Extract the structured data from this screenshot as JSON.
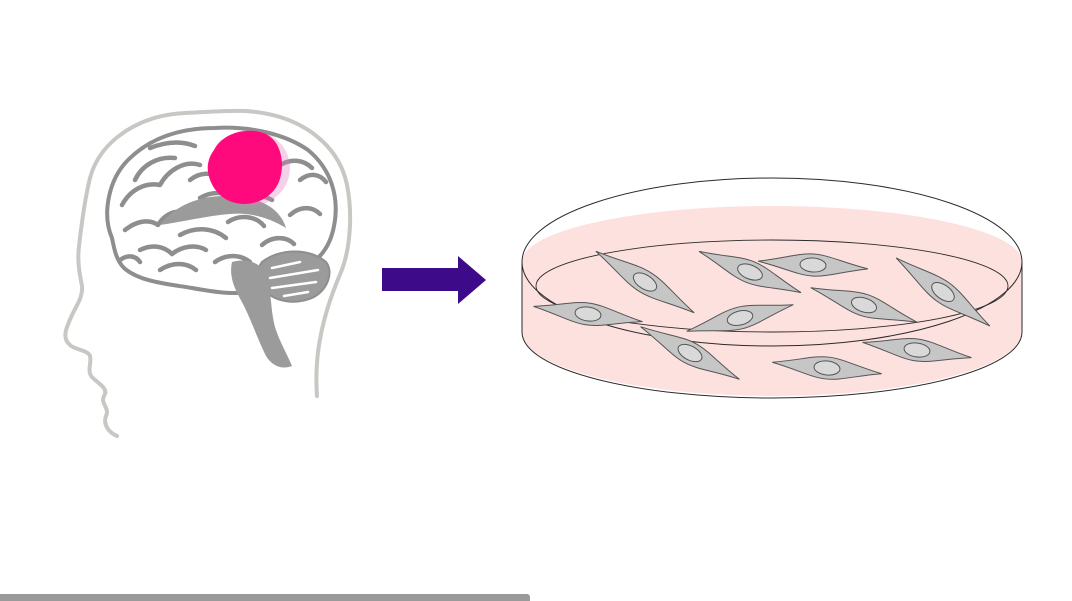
{
  "colors": {
    "head_outline": "#c9c7c4",
    "brain_fill": "#ffffff",
    "brain_gyri": "#8e8e8e",
    "brain_stem": "#9b9b9b",
    "tumor": "#ff0a7c",
    "tumor_halo": "#e07ab8",
    "arrow": "#3d0a8a",
    "culture_medium": "#fde1df",
    "dish_outline": "#2b2b2b",
    "cell_fill": "#c6c6c6",
    "cell_stroke": "#555555",
    "nucleus_fill": "#d9d9d9",
    "scrollbar": "#9a9a9a"
  },
  "icons": {
    "head": "human-head-profile-icon",
    "brain": "brain-icon",
    "tumor": "brain-tumor-icon",
    "arrow": "right-arrow-icon",
    "dish": "petri-dish-icon",
    "cell": "spindle-cell-icon"
  },
  "culture": {
    "cell_count": 10
  }
}
